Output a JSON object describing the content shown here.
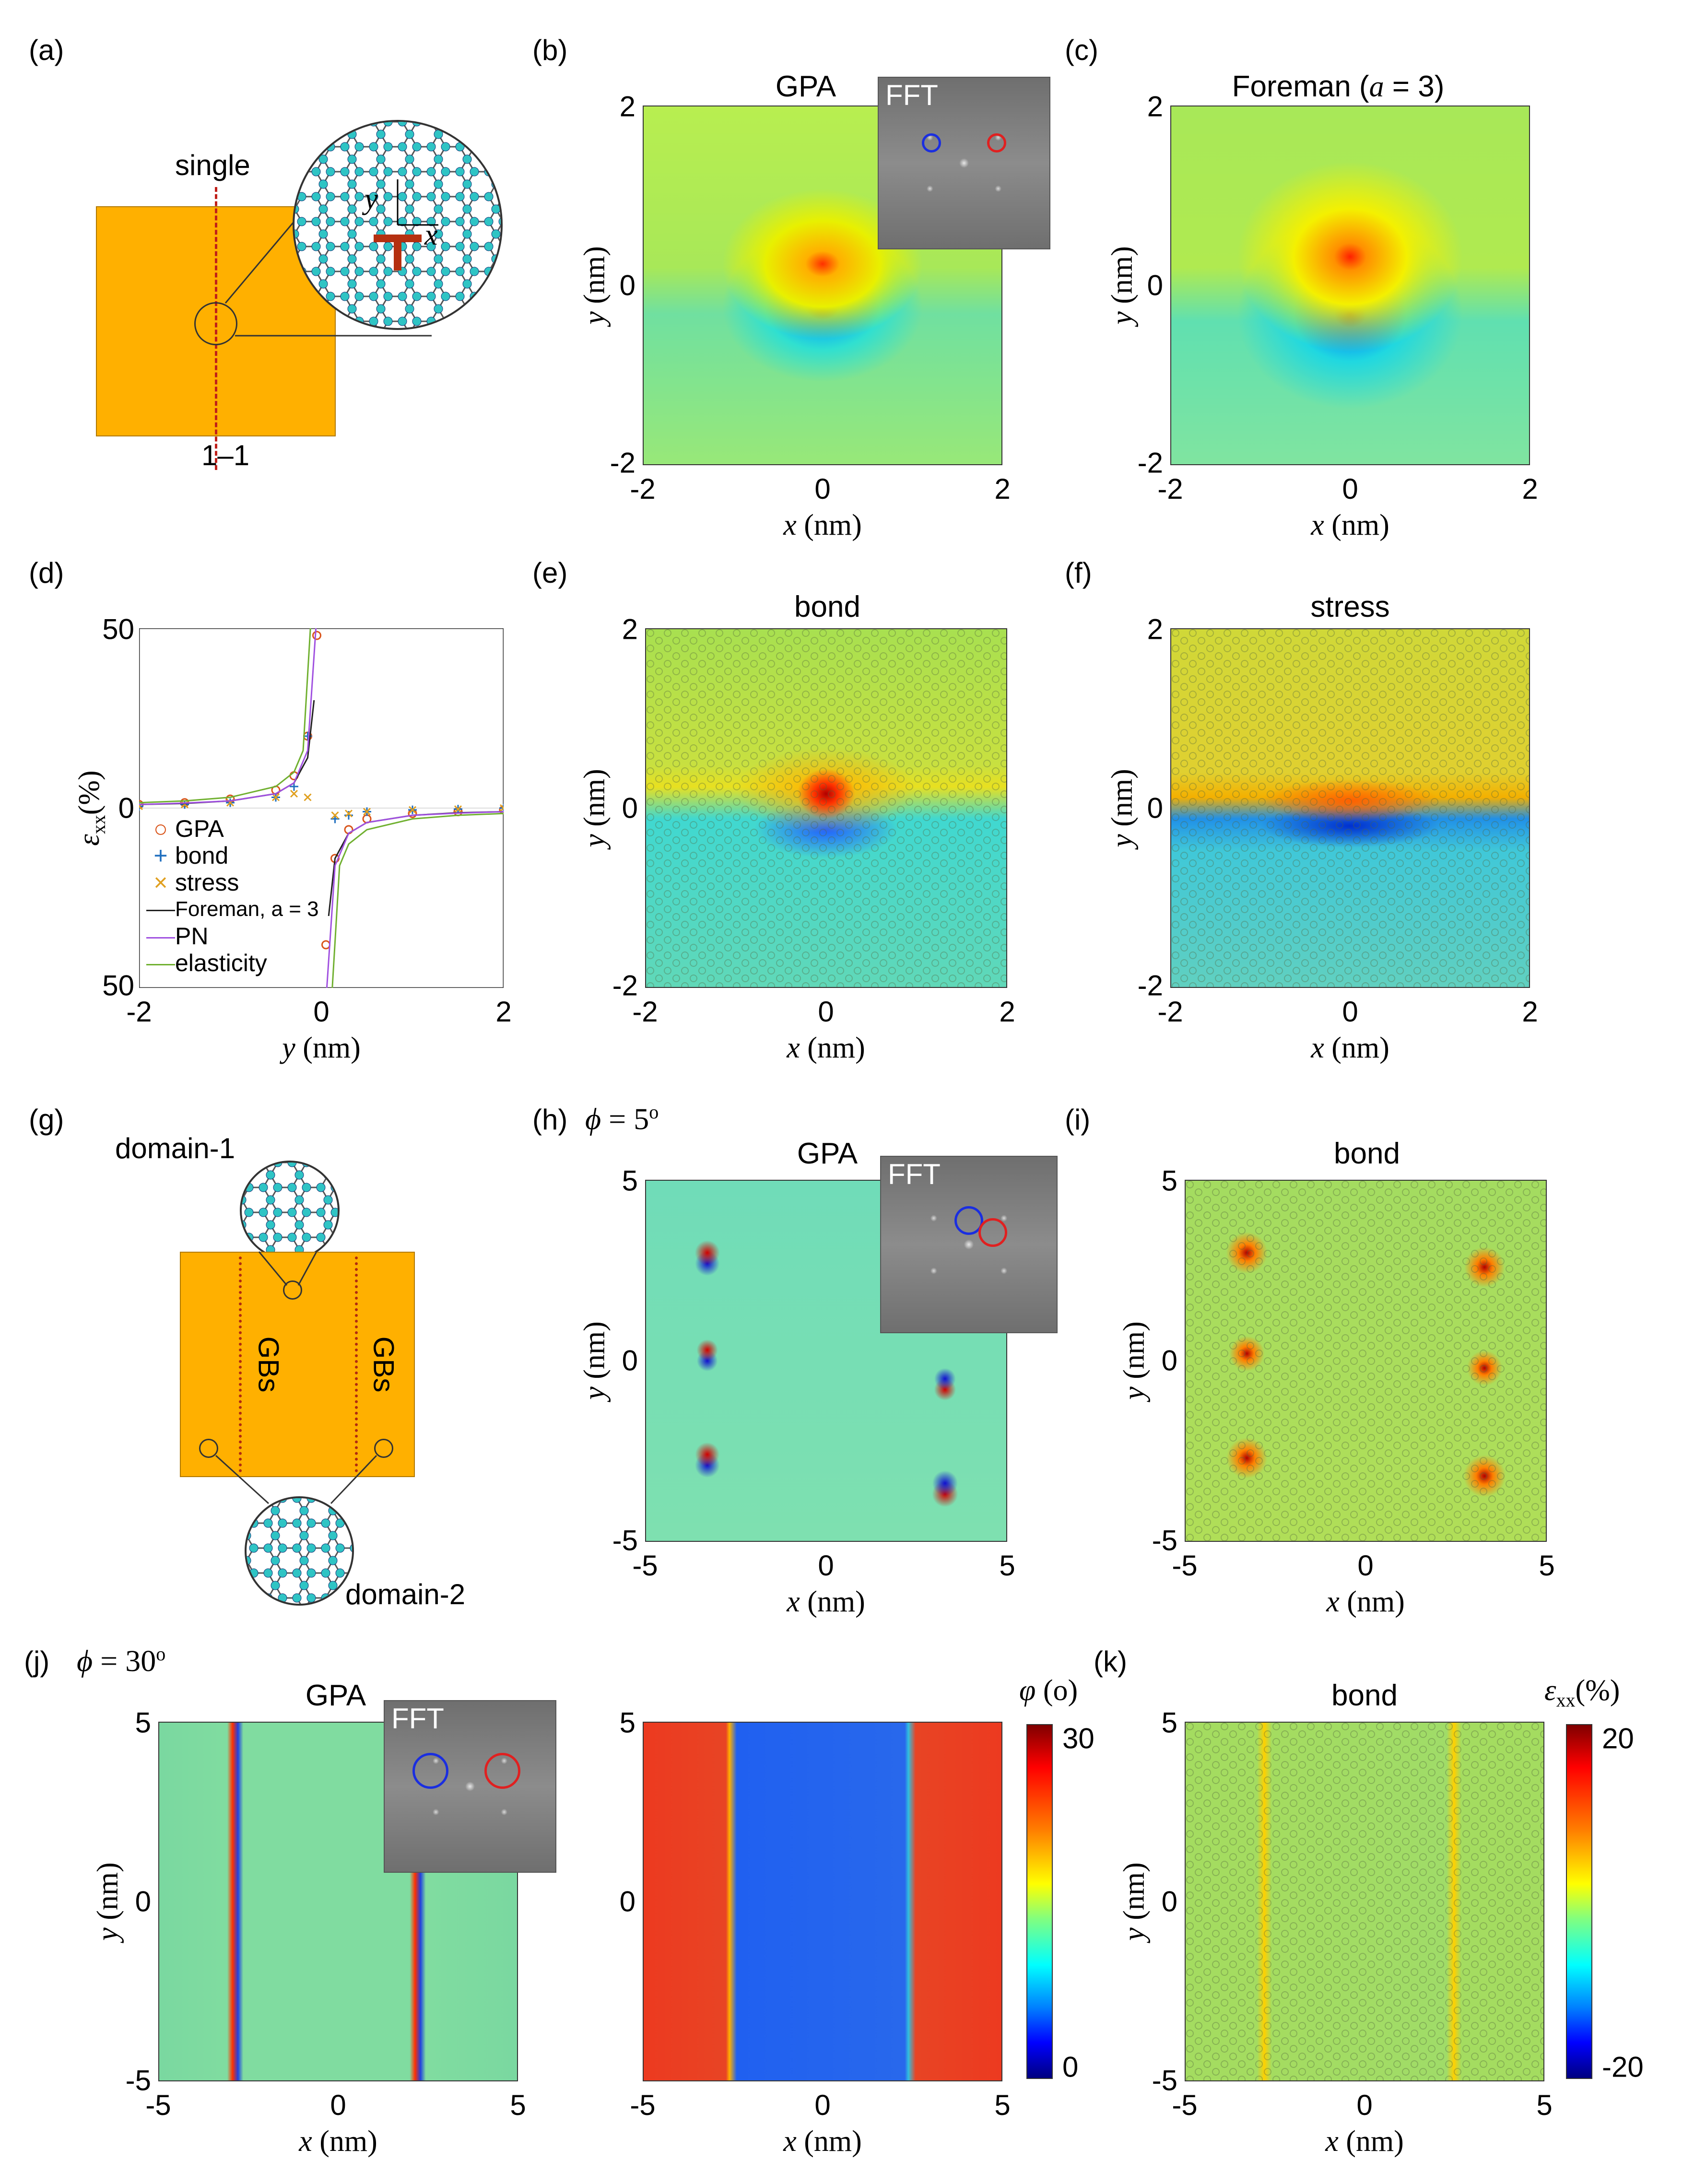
{
  "panel_labels": {
    "a": "(a)",
    "b": "(b)",
    "c": "(c)",
    "d": "(d)",
    "e": "(e)",
    "f": "(f)",
    "g": "(g)",
    "h": "(h)",
    "i": "(i)",
    "j": "(j)",
    "k": "(k)"
  },
  "panel_a": {
    "single": "single",
    "line": "1–1",
    "x": "x",
    "y": "y"
  },
  "panel_b": {
    "title": "GPA",
    "fft": "FFT"
  },
  "panel_c": {
    "title_text": "Foreman (",
    "title_var": "a",
    "title_end": " = 3)"
  },
  "panel_e": {
    "title": "bond"
  },
  "panel_f": {
    "title": "stress"
  },
  "panel_g": {
    "domain1": "domain-1",
    "domain2": "domain-2",
    "gb1": "GBs",
    "gb2": "GBs"
  },
  "panel_h": {
    "phi_var": "ϕ",
    "phi_val": " = 5",
    "phi_unit": "o",
    "title": "GPA",
    "fft": "FFT"
  },
  "panel_i": {
    "title": "bond"
  },
  "panel_j": {
    "phi_var": "ϕ",
    "phi_val": " = 30",
    "phi_unit": "o",
    "title": "GPA",
    "fft": "FFT"
  },
  "panel_k": {
    "title": "bond"
  },
  "axes": {
    "x_var": "x",
    "y_var": "y",
    "unit": " (nm)",
    "eps_var": "ε",
    "eps_sub": "xx",
    "eps_unit": "(%)",
    "phi_cb_var": "φ",
    "phi_cb_unit": " (o)",
    "ticks2": [
      "-2",
      "0",
      "2"
    ],
    "ticks5": [
      "-5",
      "0",
      "5"
    ],
    "d_yticks": [
      "50",
      "0",
      "50"
    ]
  },
  "colorbars": {
    "phi": {
      "max": "30",
      "min": "0"
    },
    "eps": {
      "max": "20",
      "min": "-20"
    }
  },
  "chart_data": {
    "type": "line",
    "title": "",
    "xlabel": "y (nm)",
    "ylabel": "εxx (%)",
    "xlim": [
      -2,
      2
    ],
    "ylim": [
      -50,
      50
    ],
    "series": [
      {
        "name": "GPA",
        "marker": "circle",
        "color": "#d9541a",
        "x": [
          -2,
          -1.5,
          -1,
          -0.5,
          -0.3,
          -0.15,
          -0.05,
          0.05,
          0.15,
          0.3,
          0.5,
          1,
          1.5,
          2
        ],
        "y": [
          1,
          1.5,
          2.5,
          5,
          9,
          20,
          48,
          -38,
          -14,
          -6,
          -3,
          -1.5,
          -1,
          -0.5
        ]
      },
      {
        "name": "bond",
        "marker": "plus",
        "color": "#1f6fbf",
        "x": [
          -2,
          -1.5,
          -1,
          -0.5,
          -0.3,
          -0.15,
          0.15,
          0.3,
          0.5,
          1,
          1.5,
          2
        ],
        "y": [
          0.5,
          1,
          1.5,
          3,
          6,
          20,
          -3,
          -2,
          -1,
          -0.5,
          -0.3,
          0
        ]
      },
      {
        "name": "stress",
        "marker": "x",
        "color": "#e0a020",
        "x": [
          -2,
          -1.5,
          -1,
          -0.5,
          -0.3,
          -0.15,
          0.15,
          0.3,
          0.5,
          1,
          1.5,
          2
        ],
        "y": [
          0.5,
          1,
          1.5,
          3,
          4,
          3,
          -2,
          -1.5,
          -1,
          -0.5,
          -0.3,
          0
        ]
      },
      {
        "name": "Foreman, a = 3",
        "marker": "line",
        "color": "#222222",
        "x": [
          -2,
          -1.5,
          -1,
          -0.5,
          -0.3,
          -0.15,
          -0.08,
          0.08,
          0.15,
          0.3,
          0.5,
          1,
          1.5,
          2
        ],
        "y": [
          1,
          1.3,
          2,
          4,
          7,
          14,
          30,
          -30,
          -14,
          -7,
          -4,
          -2,
          -1.3,
          -1
        ]
      },
      {
        "name": "PN",
        "marker": "line",
        "color": "#a050e0",
        "x": [
          -2,
          -1.5,
          -1,
          -0.5,
          -0.3,
          -0.15,
          -0.06,
          0.06,
          0.15,
          0.3,
          0.5,
          1,
          1.5,
          2
        ],
        "y": [
          1,
          1.4,
          2,
          4,
          7,
          16,
          50,
          -50,
          -16,
          -7,
          -4,
          -2,
          -1.4,
          -1
        ]
      },
      {
        "name": "elasticity",
        "marker": "line",
        "color": "#70b030",
        "x": [
          -2,
          -1.5,
          -1,
          -0.5,
          -0.3,
          -0.2,
          -0.12,
          0.12,
          0.2,
          0.3,
          0.5,
          1,
          1.5,
          2
        ],
        "y": [
          1.5,
          2,
          3,
          6,
          10,
          16,
          50,
          -50,
          -16,
          -10,
          -6,
          -3,
          -2,
          -1.5
        ]
      }
    ]
  }
}
